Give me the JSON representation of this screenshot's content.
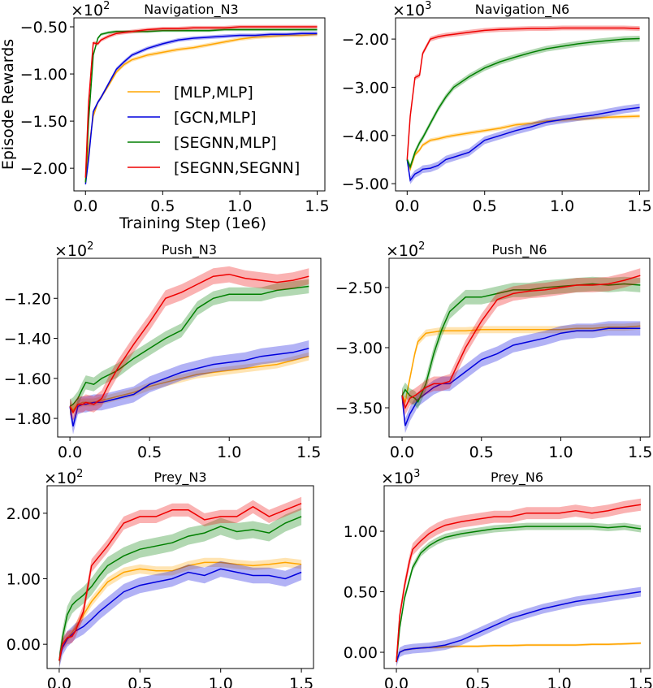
{
  "chart_data": {
    "type": "line",
    "shared_x": [
      0,
      0.02,
      0.05,
      0.08,
      0.1,
      0.15,
      0.2,
      0.25,
      0.3,
      0.4,
      0.5,
      0.6,
      0.7,
      0.8,
      0.9,
      1.0,
      1.1,
      1.2,
      1.3,
      1.4,
      1.5
    ],
    "legend": {
      "placement": "center-right of first panel",
      "entries": [
        "[MLP,MLP]",
        "[GCN,MLP]",
        "[SEGNN,MLP]",
        "[SEGNN,SEGNN]"
      ]
    },
    "colors": {
      "[MLP,MLP]": "#ffa500",
      "[GCN,MLP]": "#0000dd",
      "[SEGNN,MLP]": "#007f00",
      "[SEGNN,SEGNN]": "#ee0000"
    },
    "band": "shaded standard deviation",
    "panels": [
      {
        "title": "Navigation_N3",
        "multiplier": "×10",
        "exponent": "2",
        "ylabel": "Episode Rewards",
        "xlabel": "Training Step (1e6)",
        "xlim": [
          -0.075,
          1.55
        ],
        "ylim": [
          -2.24,
          -0.405
        ],
        "xticks": [
          0.0,
          0.5,
          1.0,
          1.5
        ],
        "xtick_labels": [
          "0.0",
          "0.5",
          "1.0",
          "1.5"
        ],
        "yticks": [
          -0.5,
          -1.0,
          -1.5,
          -2.0
        ],
        "ytick_labels": [
          "−0.50",
          "−1.00",
          "−1.50",
          "−2.00"
        ],
        "show_legend": true,
        "series": [
          {
            "name": "[MLP,MLP]",
            "band": 0.02,
            "values": [
              -2.15,
              -1.8,
              -1.45,
              -1.3,
              -1.25,
              -1.12,
              -0.98,
              -0.9,
              -0.85,
              -0.8,
              -0.77,
              -0.74,
              -0.72,
              -0.69,
              -0.66,
              -0.63,
              -0.61,
              -0.6,
              -0.59,
              -0.59,
              -0.58
            ]
          },
          {
            "name": "[GCN,MLP]",
            "band": 0.02,
            "values": [
              -2.17,
              -1.9,
              -1.4,
              -1.3,
              -1.25,
              -1.1,
              -0.95,
              -0.87,
              -0.8,
              -0.73,
              -0.68,
              -0.64,
              -0.62,
              -0.61,
              -0.6,
              -0.59,
              -0.59,
              -0.58,
              -0.58,
              -0.57,
              -0.57
            ]
          },
          {
            "name": "[SEGNN,MLP]",
            "band": 0.015,
            "values": [
              -2.15,
              -1.5,
              -0.8,
              -0.62,
              -0.58,
              -0.56,
              -0.55,
              -0.55,
              -0.55,
              -0.55,
              -0.54,
              -0.54,
              -0.54,
              -0.54,
              -0.53,
              -0.53,
              -0.53,
              -0.53,
              -0.53,
              -0.53,
              -0.53
            ]
          },
          {
            "name": "[SEGNN,SEGNN]",
            "band": 0.02,
            "values": [
              -2.1,
              -1.3,
              -0.67,
              -0.68,
              -0.64,
              -0.6,
              -0.57,
              -0.56,
              -0.55,
              -0.53,
              -0.52,
              -0.52,
              -0.51,
              -0.51,
              -0.51,
              -0.5,
              -0.5,
              -0.5,
              -0.5,
              -0.5,
              -0.5
            ]
          }
        ]
      },
      {
        "title": "Navigation_N6",
        "multiplier": "×10",
        "exponent": "3",
        "xlim": [
          -0.075,
          1.56
        ],
        "ylim": [
          -5.15,
          -1.56
        ],
        "xticks": [
          0.0,
          0.5,
          1.0,
          1.5
        ],
        "xtick_labels": [
          "0.0",
          "0.5",
          "1.0",
          "1.5"
        ],
        "yticks": [
          -2,
          -3,
          -4,
          -5
        ],
        "ytick_labels": [
          "−2.00",
          "−3.00",
          "−4.00",
          "−5.00"
        ],
        "series": [
          {
            "name": "[MLP,MLP]",
            "band": 0.04,
            "values": [
              -4.5,
              -4.7,
              -4.4,
              -4.3,
              -4.2,
              -4.1,
              -4.07,
              -4.03,
              -4.0,
              -3.95,
              -3.9,
              -3.85,
              -3.78,
              -3.75,
              -3.7,
              -3.68,
              -3.66,
              -3.64,
              -3.62,
              -3.61,
              -3.6
            ]
          },
          {
            "name": "[GCN,MLP]",
            "band": 0.08,
            "values": [
              -4.5,
              -4.93,
              -4.8,
              -4.75,
              -4.7,
              -4.68,
              -4.62,
              -4.5,
              -4.45,
              -4.35,
              -4.1,
              -4.0,
              -3.9,
              -3.82,
              -3.72,
              -3.67,
              -3.62,
              -3.58,
              -3.52,
              -3.46,
              -3.42
            ]
          },
          {
            "name": "[SEGNN,MLP]",
            "band": 0.06,
            "values": [
              -4.5,
              -4.65,
              -4.35,
              -4.15,
              -4.05,
              -3.75,
              -3.45,
              -3.2,
              -3.0,
              -2.78,
              -2.6,
              -2.47,
              -2.37,
              -2.28,
              -2.2,
              -2.15,
              -2.1,
              -2.06,
              -2.03,
              -2.0,
              -1.99
            ]
          },
          {
            "name": "[SEGNN,SEGNN]",
            "band": 0.05,
            "values": [
              -4.5,
              -3.6,
              -2.8,
              -2.75,
              -2.3,
              -2.0,
              -1.95,
              -1.92,
              -1.9,
              -1.86,
              -1.82,
              -1.8,
              -1.79,
              -1.78,
              -1.78,
              -1.77,
              -1.77,
              -1.77,
              -1.77,
              -1.77,
              -1.78
            ]
          }
        ]
      },
      {
        "title": "Push_N3",
        "multiplier": "×10",
        "exponent": "2",
        "xlim": [
          -0.077,
          1.575
        ],
        "ylim": [
          -1.893,
          -1.0
        ],
        "xticks": [
          0.0,
          0.5,
          1.0,
          1.5
        ],
        "xtick_labels": [
          "0.0",
          "0.5",
          "1.0",
          "1.5"
        ],
        "yticks": [
          -1.2,
          -1.4,
          -1.6,
          -1.8
        ],
        "ytick_labels": [
          "−1.20",
          "−1.40",
          "−1.60",
          "−1.80"
        ],
        "series": [
          {
            "name": "[MLP,MLP]",
            "band": 0.02,
            "values": [
              -1.74,
              -1.76,
              -1.73,
              -1.72,
              -1.72,
              -1.72,
              -1.71,
              -1.7,
              -1.69,
              -1.67,
              -1.64,
              -1.62,
              -1.6,
              -1.58,
              -1.57,
              -1.56,
              -1.55,
              -1.54,
              -1.53,
              -1.51,
              -1.49
            ]
          },
          {
            "name": "[GCN,MLP]",
            "band": 0.04,
            "values": [
              -1.74,
              -1.84,
              -1.74,
              -1.73,
              -1.73,
              -1.72,
              -1.72,
              -1.71,
              -1.7,
              -1.68,
              -1.63,
              -1.6,
              -1.57,
              -1.55,
              -1.53,
              -1.52,
              -1.51,
              -1.49,
              -1.48,
              -1.47,
              -1.45
            ]
          },
          {
            "name": "[SEGNN,MLP]",
            "band": 0.035,
            "values": [
              -1.74,
              -1.73,
              -1.7,
              -1.65,
              -1.62,
              -1.63,
              -1.6,
              -1.58,
              -1.56,
              -1.5,
              -1.45,
              -1.4,
              -1.36,
              -1.25,
              -1.2,
              -1.18,
              -1.18,
              -1.18,
              -1.16,
              -1.15,
              -1.14
            ]
          },
          {
            "name": "[SEGNN,SEGNN]",
            "band": 0.04,
            "values": [
              -1.74,
              -1.77,
              -1.73,
              -1.73,
              -1.72,
              -1.73,
              -1.7,
              -1.62,
              -1.55,
              -1.43,
              -1.32,
              -1.2,
              -1.17,
              -1.13,
              -1.09,
              -1.08,
              -1.1,
              -1.11,
              -1.12,
              -1.11,
              -1.09
            ]
          }
        ]
      },
      {
        "title": "Push_N6",
        "multiplier": "×10",
        "exponent": "2",
        "xlim": [
          -0.082,
          1.56
        ],
        "ylim": [
          -3.743,
          -2.257
        ],
        "xticks": [
          0.0,
          0.5,
          1.0,
          1.5
        ],
        "xtick_labels": [
          "0.0",
          "0.5",
          "1.0",
          "1.5"
        ],
        "yticks": [
          -2.5,
          -3.0,
          -3.5
        ],
        "ytick_labels": [
          "−2.50",
          "−3.00",
          "−3.50"
        ],
        "series": [
          {
            "name": "[MLP,MLP]",
            "band": 0.03,
            "values": [
              -3.4,
              -3.45,
              -3.25,
              -3.05,
              -2.95,
              -2.88,
              -2.87,
              -2.86,
              -2.86,
              -2.86,
              -2.85,
              -2.85,
              -2.85,
              -2.85,
              -2.85,
              -2.85,
              -2.84,
              -2.84,
              -2.83,
              -2.83,
              -2.82
            ]
          },
          {
            "name": "[GCN,MLP]",
            "band": 0.06,
            "values": [
              -3.4,
              -3.65,
              -3.55,
              -3.48,
              -3.43,
              -3.38,
              -3.33,
              -3.3,
              -3.3,
              -3.2,
              -3.1,
              -3.05,
              -2.98,
              -2.95,
              -2.92,
              -2.88,
              -2.86,
              -2.86,
              -2.84,
              -2.84,
              -2.84
            ]
          },
          {
            "name": "[SEGNN,MLP]",
            "band": 0.06,
            "values": [
              -3.4,
              -3.35,
              -3.4,
              -3.42,
              -3.45,
              -3.3,
              -3.05,
              -2.85,
              -2.7,
              -2.58,
              -2.58,
              -2.55,
              -2.52,
              -2.52,
              -2.5,
              -2.49,
              -2.48,
              -2.47,
              -2.48,
              -2.47,
              -2.48
            ]
          },
          {
            "name": "[SEGNN,SEGNN]",
            "band": 0.06,
            "values": [
              -3.4,
              -3.5,
              -3.42,
              -3.4,
              -3.38,
              -3.33,
              -3.3,
              -3.3,
              -3.28,
              -3.0,
              -2.78,
              -2.6,
              -2.55,
              -2.53,
              -2.52,
              -2.5,
              -2.48,
              -2.48,
              -2.47,
              -2.44,
              -2.4
            ]
          }
        ]
      },
      {
        "title": "Prey_N3",
        "multiplier": "×10",
        "exponent": "2",
        "xlim": [
          -0.075,
          1.575
        ],
        "ylim": [
          -0.37,
          2.42
        ],
        "xticks": [
          0.0,
          0.5,
          1.0,
          1.5
        ],
        "xtick_labels": [
          "0.0",
          "0.5",
          "1.0",
          "1.5"
        ],
        "yticks": [
          0,
          1,
          2
        ],
        "ytick_labels": [
          "0.00",
          "1.00",
          "2.00"
        ],
        "series": [
          {
            "name": "[MLP,MLP]",
            "band": 0.07,
            "values": [
              -0.25,
              0.0,
              0.1,
              0.18,
              0.25,
              0.45,
              0.65,
              0.8,
              0.95,
              1.1,
              1.15,
              1.12,
              1.12,
              1.2,
              1.25,
              1.25,
              1.22,
              1.2,
              1.22,
              1.25,
              1.22
            ]
          },
          {
            "name": "[GCN,MLP]",
            "band": 0.12,
            "values": [
              -0.25,
              -0.05,
              0.08,
              0.15,
              0.2,
              0.27,
              0.38,
              0.5,
              0.6,
              0.8,
              0.9,
              0.95,
              1.0,
              1.1,
              1.05,
              1.15,
              1.1,
              1.05,
              1.05,
              1.0,
              1.1
            ]
          },
          {
            "name": "[SEGNN,MLP]",
            "band": 0.13,
            "values": [
              -0.25,
              0.1,
              0.45,
              0.6,
              0.65,
              0.75,
              0.88,
              1.05,
              1.2,
              1.35,
              1.45,
              1.5,
              1.55,
              1.65,
              1.7,
              1.8,
              1.72,
              1.75,
              1.7,
              1.85,
              1.95
            ]
          },
          {
            "name": "[SEGNN,SEGNN]",
            "band": 0.1,
            "values": [
              -0.25,
              0.0,
              0.1,
              0.12,
              0.2,
              0.5,
              1.2,
              1.35,
              1.5,
              1.85,
              1.95,
              1.95,
              2.05,
              2.05,
              1.9,
              1.95,
              1.95,
              2.1,
              1.95,
              2.05,
              2.15
            ]
          }
        ]
      },
      {
        "title": "Prey_N6",
        "multiplier": "×10",
        "exponent": "3",
        "xlim": [
          -0.075,
          1.555
        ],
        "ylim": [
          -0.134,
          1.376
        ],
        "xticks": [
          0.0,
          0.5,
          1.0,
          1.5
        ],
        "xtick_labels": [
          "0.0",
          "0.5",
          "1.0",
          "1.5"
        ],
        "yticks": [
          0,
          0.5,
          1.0
        ],
        "ytick_labels": [
          "0.00",
          "0.50",
          "1.00"
        ],
        "series": [
          {
            "name": "[MLP,MLP]",
            "band": 0.01,
            "values": [
              -0.08,
              0.0,
              0.02,
              0.025,
              0.03,
              0.035,
              0.04,
              0.04,
              0.045,
              0.05,
              0.05,
              0.055,
              0.055,
              0.06,
              0.06,
              0.06,
              0.06,
              0.065,
              0.065,
              0.07,
              0.075
            ]
          },
          {
            "name": "[GCN,MLP]",
            "band": 0.04,
            "values": [
              -0.08,
              0.0,
              0.02,
              0.025,
              0.03,
              0.035,
              0.04,
              0.05,
              0.06,
              0.1,
              0.16,
              0.22,
              0.28,
              0.32,
              0.36,
              0.39,
              0.42,
              0.44,
              0.46,
              0.48,
              0.5
            ]
          },
          {
            "name": "[SEGNN,MLP]",
            "band": 0.03,
            "values": [
              -0.08,
              0.2,
              0.45,
              0.6,
              0.7,
              0.82,
              0.88,
              0.92,
              0.95,
              0.98,
              1.0,
              1.02,
              1.03,
              1.04,
              1.04,
              1.04,
              1.04,
              1.04,
              1.03,
              1.04,
              1.02
            ]
          },
          {
            "name": "[SEGNN,SEGNN]",
            "band": 0.05,
            "values": [
              -0.08,
              0.3,
              0.55,
              0.75,
              0.85,
              0.92,
              0.98,
              1.02,
              1.05,
              1.08,
              1.1,
              1.12,
              1.12,
              1.15,
              1.15,
              1.15,
              1.17,
              1.15,
              1.17,
              1.2,
              1.22
            ]
          }
        ]
      }
    ]
  }
}
